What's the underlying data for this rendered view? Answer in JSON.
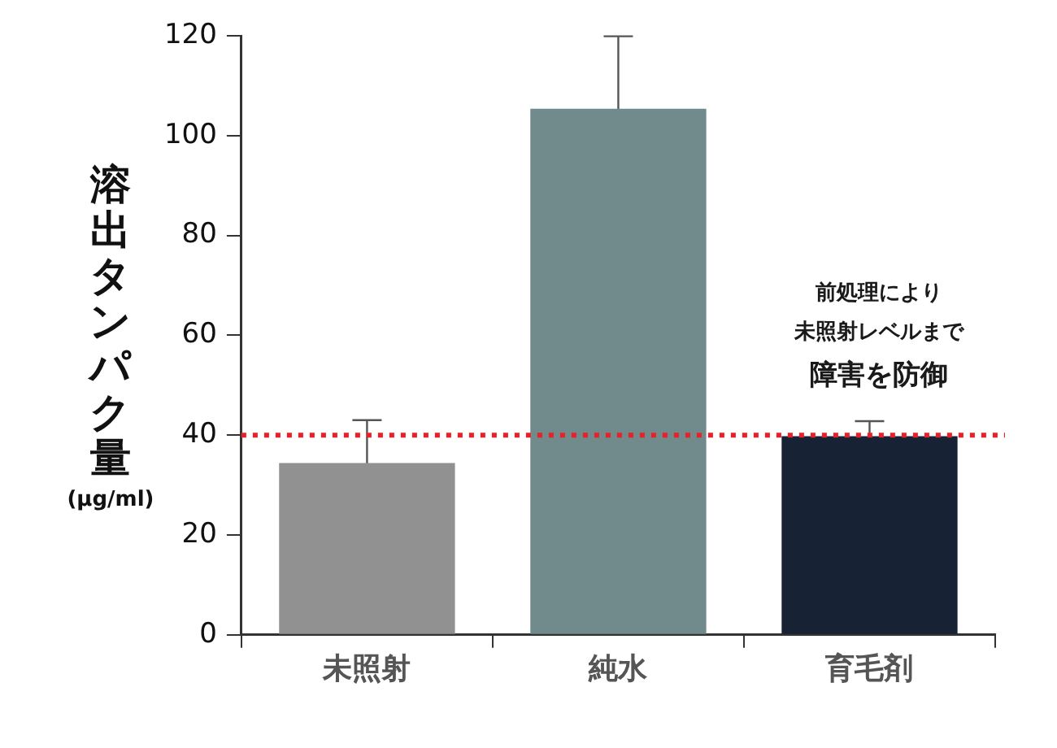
{
  "chart_data": {
    "type": "bar",
    "ylabel": "溶出タンパク量\n(μg/ml)",
    "categories": [
      "未照射",
      "純水",
      "育毛剤"
    ],
    "values": [
      34.4,
      105.4,
      39.8
    ],
    "errors": [
      8.6,
      14.5,
      3
    ],
    "colors": [
      "#929191",
      "#718a8c",
      "#172334"
    ],
    "ylim": [
      0,
      120
    ],
    "yticks": [
      0,
      20,
      40,
      60,
      80,
      100,
      120
    ],
    "ref_lines": [
      {
        "axis": "y",
        "value": 40,
        "color": "#e8202a",
        "line_style": "dotted"
      }
    ],
    "annotations": [
      "前処理により",
      "未照射レベルまで",
      "障害を防御"
    ],
    "grid": false,
    "legend": false
  }
}
